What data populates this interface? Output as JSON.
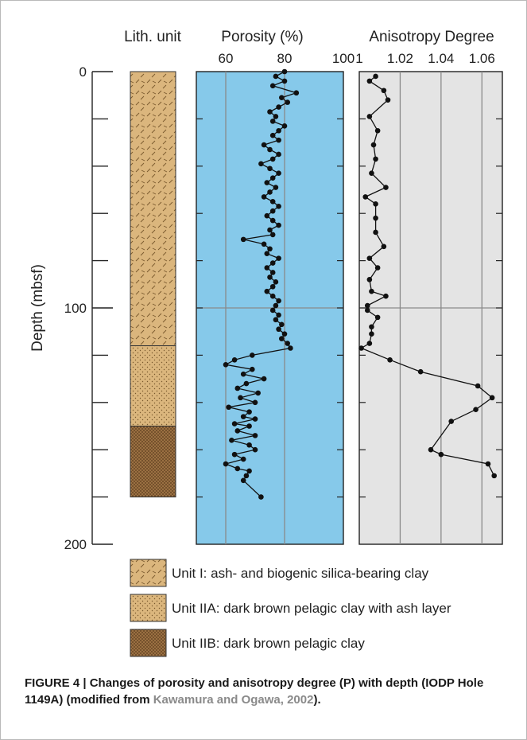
{
  "chart_data": {
    "type": "line",
    "y_axis": {
      "label": "Depth (mbsf)",
      "range": [
        0,
        200
      ],
      "ticks": [
        0,
        100,
        200
      ],
      "direction": "down"
    },
    "lithology": {
      "title": "Lith. unit",
      "units": [
        {
          "id": "unit-i",
          "top": 0,
          "bottom": 116,
          "color": "#dbb67d",
          "pattern": "hatch"
        },
        {
          "id": "unit-iia",
          "top": 116,
          "bottom": 150,
          "color": "#dbb67d",
          "pattern": "dots"
        },
        {
          "id": "unit-iib",
          "top": 150,
          "bottom": 180,
          "color": "#a07445",
          "pattern": "crosshatch"
        }
      ]
    },
    "porosity": {
      "title": "Porosity (%)",
      "x_range": [
        50,
        100
      ],
      "x_ticks": [
        "60",
        "80",
        "100"
      ],
      "x_tick_values": [
        60,
        80,
        100
      ],
      "background": "#86c9ea",
      "points": [
        [
          80,
          0
        ],
        [
          77,
          2
        ],
        [
          80,
          4
        ],
        [
          76,
          6
        ],
        [
          84,
          9
        ],
        [
          79,
          11
        ],
        [
          81,
          13
        ],
        [
          78,
          15
        ],
        [
          75,
          17
        ],
        [
          77,
          19
        ],
        [
          76,
          21
        ],
        [
          80,
          23
        ],
        [
          78,
          25
        ],
        [
          76,
          27
        ],
        [
          78,
          29
        ],
        [
          73,
          31
        ],
        [
          75,
          33
        ],
        [
          78,
          35
        ],
        [
          76,
          37
        ],
        [
          72,
          39
        ],
        [
          75,
          41
        ],
        [
          78,
          43
        ],
        [
          76,
          45
        ],
        [
          74,
          47
        ],
        [
          77,
          49
        ],
        [
          75,
          51
        ],
        [
          73,
          53
        ],
        [
          76,
          55
        ],
        [
          78,
          57
        ],
        [
          76,
          59
        ],
        [
          74,
          61
        ],
        [
          76,
          63
        ],
        [
          78,
          65
        ],
        [
          75,
          67
        ],
        [
          76,
          69
        ],
        [
          66,
          71
        ],
        [
          73,
          73
        ],
        [
          75,
          75
        ],
        [
          74,
          77
        ],
        [
          78,
          79
        ],
        [
          76,
          81
        ],
        [
          74,
          83
        ],
        [
          76,
          85
        ],
        [
          75,
          87
        ],
        [
          77,
          89
        ],
        [
          76,
          91
        ],
        [
          74,
          93
        ],
        [
          76,
          95
        ],
        [
          78,
          97
        ],
        [
          77,
          99
        ],
        [
          76,
          101
        ],
        [
          78,
          103
        ],
        [
          77,
          105
        ],
        [
          79,
          107
        ],
        [
          78,
          109
        ],
        [
          80,
          111
        ],
        [
          79,
          113
        ],
        [
          81,
          115
        ],
        [
          82,
          117
        ],
        [
          69,
          120
        ],
        [
          63,
          122
        ],
        [
          60,
          124
        ],
        [
          69,
          126
        ],
        [
          66,
          128
        ],
        [
          73,
          130
        ],
        [
          67,
          132
        ],
        [
          64,
          134
        ],
        [
          71,
          136
        ],
        [
          65,
          138
        ],
        [
          70,
          140
        ],
        [
          61,
          142
        ],
        [
          68,
          144
        ],
        [
          66,
          146
        ],
        [
          70,
          147
        ],
        [
          63,
          149
        ],
        [
          68,
          150
        ],
        [
          64,
          152
        ],
        [
          70,
          154
        ],
        [
          62,
          156
        ],
        [
          68,
          158
        ],
        [
          70,
          160
        ],
        [
          63,
          162
        ],
        [
          66,
          164
        ],
        [
          60,
          166
        ],
        [
          64,
          168
        ],
        [
          68,
          169
        ],
        [
          67,
          171
        ],
        [
          66,
          173
        ],
        [
          72,
          180
        ]
      ]
    },
    "anisotropy": {
      "title": "Anisotropy Degree",
      "x_range": [
        1,
        1.07
      ],
      "x_ticks": [
        "1",
        "1.02",
        "1.04",
        "1.06"
      ],
      "x_tick_values": [
        1,
        1.02,
        1.04,
        1.06
      ],
      "background": "#e4e4e4",
      "points": [
        [
          1.008,
          2
        ],
        [
          1.005,
          4
        ],
        [
          1.012,
          8
        ],
        [
          1.014,
          12
        ],
        [
          1.005,
          19
        ],
        [
          1.009,
          25
        ],
        [
          1.007,
          31
        ],
        [
          1.008,
          37
        ],
        [
          1.006,
          43
        ],
        [
          1.013,
          49
        ],
        [
          1.003,
          53
        ],
        [
          1.008,
          56
        ],
        [
          1.008,
          62
        ],
        [
          1.008,
          68
        ],
        [
          1.012,
          74
        ],
        [
          1.005,
          79
        ],
        [
          1.009,
          83
        ],
        [
          1.005,
          88
        ],
        [
          1.006,
          93
        ],
        [
          1.013,
          95
        ],
        [
          1.004,
          99
        ],
        [
          1.004,
          101
        ],
        [
          1.009,
          104
        ],
        [
          1.006,
          108
        ],
        [
          1.006,
          111
        ],
        [
          1.005,
          115
        ],
        [
          1.001,
          117
        ],
        [
          1.015,
          122
        ],
        [
          1.03,
          127
        ],
        [
          1.058,
          133
        ],
        [
          1.065,
          138
        ],
        [
          1.057,
          143
        ],
        [
          1.045,
          148
        ],
        [
          1.035,
          160
        ],
        [
          1.04,
          162
        ],
        [
          1.063,
          166
        ],
        [
          1.066,
          171
        ]
      ]
    },
    "legend": [
      {
        "id": "unit-i",
        "label": "Unit I: ash- and biogenic silica-bearing clay"
      },
      {
        "id": "unit-iia",
        "label": "Unit IIA: dark brown pelagic clay with ash layer"
      },
      {
        "id": "unit-iib",
        "label": "Unit IIB: dark brown pelagic clay"
      }
    ]
  },
  "caption": {
    "text": "FIGURE 4 | Changes of porosity and anisotropy degree (P) with depth (IODP Hole 1149A) (modified from ",
    "ref": "Kawamura and Ogawa, 2002",
    "end": ")."
  }
}
